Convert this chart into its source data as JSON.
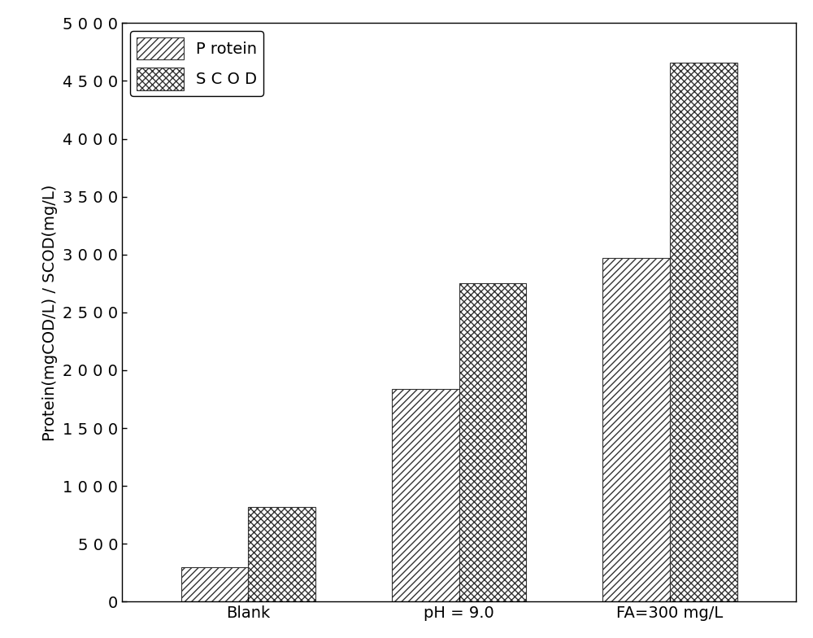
{
  "categories": [
    "Blank",
    "pH = 9.0",
    "FA=300 mg/L"
  ],
  "protein_values": [
    300,
    1840,
    2970
  ],
  "scod_values": [
    820,
    2750,
    4660
  ],
  "bar_width": 0.32,
  "ylim": [
    0,
    5000
  ],
  "yticks": [
    0,
    500,
    1000,
    1500,
    2000,
    2500,
    3000,
    3500,
    4000,
    4500,
    5000
  ],
  "ytick_labels": [
    "0",
    "5 0 0",
    "1 0 0 0",
    "1 5 0 0",
    "2 0 0 0",
    "2 5 0 0",
    "3 0 0 0",
    "3 5 0 0",
    "4 0 0 0",
    "4 5 0 0",
    "5 0 0 0"
  ],
  "ylabel": "Protein(mgCOD/L) / SCOD(mg/L)",
  "protein_label": "P rotein",
  "scod_label": "S C O D",
  "protein_hatch": "////",
  "scod_hatch": "xxxx",
  "bar_facecolor": "#ffffff",
  "bar_edgecolor": "#333333",
  "background_color": "#ffffff",
  "legend_fontsize": 14,
  "tick_fontsize": 14,
  "label_fontsize": 14,
  "xtick_fontsize": 14
}
